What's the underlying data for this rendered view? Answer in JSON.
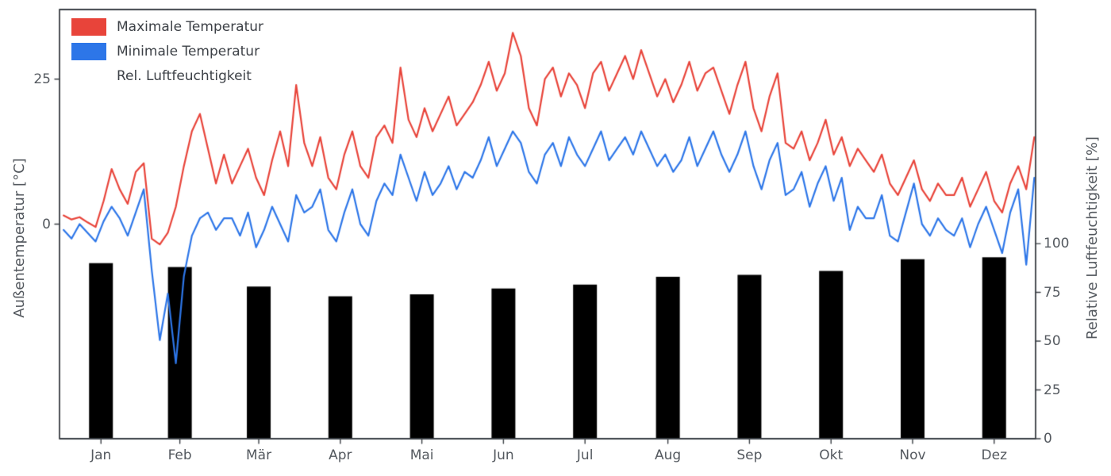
{
  "chart_data": {
    "type": "mixed",
    "title": "",
    "x_axis": {
      "tick_labels": [
        "Jan",
        "Feb",
        "Mär",
        "Apr",
        "Mai",
        "Jun",
        "Jul",
        "Aug",
        "Sep",
        "Okt",
        "Nov",
        "Dez"
      ],
      "month_days": [
        31,
        28,
        31,
        30,
        31,
        30,
        31,
        31,
        30,
        31,
        30,
        31
      ]
    },
    "left_axis": {
      "label": "Außentemperatur [°C]",
      "ticks": [
        0,
        25
      ],
      "range": [
        -37,
        37
      ]
    },
    "right_axis": {
      "label": "Relative Luftfeuchtigkeit [%]",
      "ticks": [
        0,
        25,
        50,
        75,
        100
      ],
      "range": [
        0,
        220
      ]
    },
    "sample_interval_days": 3,
    "series": [
      {
        "name": "Maximale Temperatur",
        "type": "line",
        "axis": "left",
        "color": "#e8443a",
        "values": [
          1.5,
          0.8,
          1.2,
          0.3,
          -0.5,
          4,
          9.5,
          6,
          3.5,
          9,
          10.5,
          -2.5,
          -3.5,
          -1.5,
          3,
          10,
          16,
          19,
          13,
          7,
          12,
          7,
          10,
          13,
          8,
          5,
          11,
          16,
          10,
          24,
          14,
          10,
          15,
          8,
          6,
          12,
          16,
          10,
          8,
          15,
          17,
          14,
          27,
          18,
          15,
          20,
          16,
          19,
          22,
          17,
          19,
          21,
          24,
          28,
          23,
          26,
          33,
          29,
          20,
          17,
          25,
          27,
          22,
          26,
          24,
          20,
          26,
          28,
          23,
          26,
          29,
          25,
          30,
          26,
          22,
          25,
          21,
          24,
          28,
          23,
          26,
          27,
          23,
          19,
          24,
          28,
          20,
          16,
          22,
          26,
          14,
          13,
          16,
          11,
          14,
          18,
          12,
          15,
          10,
          13,
          11,
          9,
          12,
          7,
          5,
          8,
          11,
          6,
          4,
          7,
          5,
          5,
          8,
          3,
          6,
          9,
          4,
          2,
          7,
          10,
          6,
          15
        ]
      },
      {
        "name": "Minimale Temperatur",
        "type": "line",
        "axis": "left",
        "color": "#2d76e8",
        "values": [
          -1,
          -2.5,
          0,
          -1.5,
          -3,
          0.5,
          3,
          1,
          -2,
          2,
          6,
          -8,
          -20,
          -12,
          -24,
          -9,
          -2,
          1,
          2,
          -1,
          1,
          1,
          -2,
          2,
          -4,
          -1,
          3,
          0,
          -3,
          5,
          2,
          3,
          6,
          -1,
          -3,
          2,
          6,
          0,
          -2,
          4,
          7,
          5,
          12,
          8,
          4,
          9,
          5,
          7,
          10,
          6,
          9,
          8,
          11,
          15,
          10,
          13,
          16,
          14,
          9,
          7,
          12,
          14,
          10,
          15,
          12,
          10,
          13,
          16,
          11,
          13,
          15,
          12,
          16,
          13,
          10,
          12,
          9,
          11,
          15,
          10,
          13,
          16,
          12,
          9,
          12,
          16,
          10,
          6,
          11,
          14,
          5,
          6,
          9,
          3,
          7,
          10,
          4,
          8,
          -1,
          3,
          1,
          1,
          5,
          -2,
          -3,
          2,
          7,
          0,
          -2,
          1,
          -1,
          -2,
          1,
          -4,
          0,
          3,
          -1,
          -5,
          2,
          6,
          -7,
          8
        ]
      },
      {
        "name": "Rel. Luftfeuchtigkeit",
        "type": "bar",
        "axis": "right",
        "categories": [
          "Jan",
          "Feb",
          "Mär",
          "Apr",
          "Mai",
          "Jun",
          "Jul",
          "Aug",
          "Sep",
          "Okt",
          "Nov",
          "Dez"
        ],
        "values": [
          90,
          88,
          78,
          73,
          74,
          77,
          79,
          83,
          84,
          86,
          92,
          93
        ]
      }
    ],
    "legend": {
      "position": "upper-left",
      "frame": false
    }
  },
  "colors": {
    "spine": "#3a3f44",
    "text": "#54595f",
    "background": "#ffffff"
  }
}
